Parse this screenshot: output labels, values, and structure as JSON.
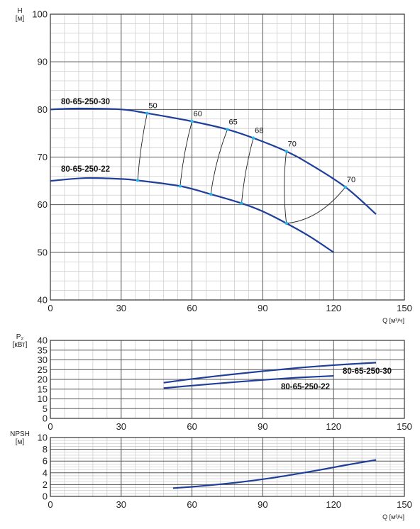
{
  "colors": {
    "curve": "#1f3f9a",
    "efficiency_point": "#29b6e8",
    "iso_line": "#222222",
    "grid_minor": "#cfcfcf",
    "grid_major": "#555555"
  },
  "chart_data": [
    {
      "type": "line",
      "id": "head",
      "ylabel": "H\n[м]",
      "xlabel": "",
      "xlim": [
        0,
        150
      ],
      "ylim": [
        40,
        100
      ],
      "x_ticks": [
        0,
        30,
        60,
        90,
        120,
        150
      ],
      "y_ticks": [
        40,
        50,
        60,
        70,
        80,
        90,
        100
      ],
      "grid": true,
      "series": [
        {
          "name": "80-65-250-30",
          "points": [
            [
              0,
              80
            ],
            [
              12,
              80.2
            ],
            [
              30,
              80
            ],
            [
              41,
              79.2
            ],
            [
              60,
              77.5
            ],
            [
              75,
              75.8
            ],
            [
              86,
              74
            ],
            [
              100,
              71.2
            ],
            [
              110,
              68.5
            ],
            [
              125,
              63.7
            ],
            [
              138,
              58
            ]
          ]
        },
        {
          "name": "80-65-250-22",
          "points": [
            [
              0,
              65
            ],
            [
              15,
              65.6
            ],
            [
              30,
              65.4
            ],
            [
              37,
              65.1
            ],
            [
              55,
              63.9
            ],
            [
              68,
              62.2
            ],
            [
              81,
              60.3
            ],
            [
              90,
              58.6
            ],
            [
              100,
              56.1
            ],
            [
              110,
              53.3
            ],
            [
              120,
              50
            ]
          ]
        }
      ],
      "iso_efficiency": [
        {
          "label": "50",
          "from": [
            37,
            65.1
          ],
          "to": [
            41,
            79.2
          ]
        },
        {
          "label": "60",
          "from": [
            55,
            63.9
          ],
          "to": [
            60,
            77.5
          ]
        },
        {
          "label": "65",
          "from": [
            68,
            62.2
          ],
          "to": [
            75,
            75.8
          ]
        },
        {
          "label": "68",
          "from": [
            81,
            60.3
          ],
          "to": [
            86,
            74
          ]
        },
        {
          "label": "70",
          "from": [
            100,
            56.1
          ],
          "to": [
            100,
            71.2
          ]
        },
        {
          "label": "70",
          "from": [
            100,
            56.1
          ],
          "to": [
            125,
            63.7
          ]
        }
      ]
    },
    {
      "type": "line",
      "id": "power",
      "ylabel": "P₂\n[кВт]",
      "xlabel": "",
      "xlim": [
        0,
        150
      ],
      "ylim": [
        0,
        40
      ],
      "x_ticks": [
        0,
        30,
        60,
        90,
        120,
        150
      ],
      "y_ticks": [
        0,
        5,
        10,
        15,
        20,
        25,
        30,
        35,
        40
      ],
      "grid": true,
      "series": [
        {
          "name": "80-65-250-30",
          "points": [
            [
              48,
              18.3
            ],
            [
              60,
              20.2
            ],
            [
              75,
              22.3
            ],
            [
              90,
              24.2
            ],
            [
              105,
              25.9
            ],
            [
              120,
              27.3
            ],
            [
              138,
              28.6
            ]
          ]
        },
        {
          "name": "80-65-250-22",
          "points": [
            [
              48,
              15.5
            ],
            [
              60,
              16.8
            ],
            [
              75,
              18.3
            ],
            [
              90,
              19.7
            ],
            [
              105,
              20.9
            ],
            [
              120,
              21.8
            ]
          ]
        }
      ]
    },
    {
      "type": "line",
      "id": "npsh",
      "ylabel": "NPSH\n[м]",
      "xlabel": "Q [м³/ч]",
      "xlim": [
        0,
        150
      ],
      "ylim": [
        0,
        10
      ],
      "x_ticks": [
        0,
        30,
        60,
        90,
        120,
        150
      ],
      "y_ticks": [
        0,
        2,
        4,
        6,
        8,
        10
      ],
      "grid": true,
      "series": [
        {
          "name": "",
          "points": [
            [
              52,
              1.4
            ],
            [
              65,
              1.8
            ],
            [
              80,
              2.4
            ],
            [
              95,
              3.2
            ],
            [
              110,
              4.2
            ],
            [
              125,
              5.3
            ],
            [
              138,
              6.2
            ]
          ]
        }
      ]
    }
  ],
  "head_xlabel": "Q [м³/ч]"
}
